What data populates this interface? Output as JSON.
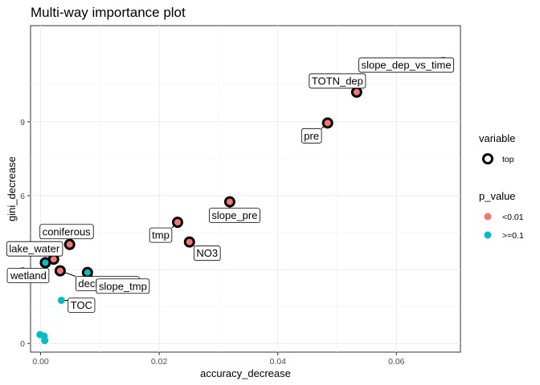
{
  "chart_data": {
    "type": "scatter",
    "title": "Multi-way importance plot",
    "xlabel": "accuracy_decrease",
    "ylabel": "gini_decrease",
    "xlim": [
      -0.0017,
      0.0708
    ],
    "ylim": [
      -0.35,
      12.9
    ],
    "x_ticks": [
      0.0,
      0.02,
      0.04,
      0.06
    ],
    "x_tick_labels": [
      "0.00",
      "0.02",
      "0.04",
      "0.06"
    ],
    "y_ticks": [
      0,
      3,
      6,
      9
    ],
    "y_tick_labels": [
      "0",
      "3",
      "6",
      "9"
    ],
    "grid": true,
    "legend": {
      "placement": "right",
      "variable": {
        "title": "variable",
        "entries": [
          "top"
        ]
      },
      "p_value": {
        "title": "p_value",
        "entries": [
          {
            "label": "<0.01",
            "color": "#F8766D"
          },
          {
            "label": ">=0.1",
            "color": "#00BFC4"
          }
        ]
      }
    },
    "colors": {
      "<0.01": "#F8766D",
      ">=0.1": "#00BFC4"
    },
    "points": [
      {
        "label": "slope_dep_vs_time",
        "x": 0.0679,
        "y": 11.4,
        "p_value": "<0.01",
        "top": true
      },
      {
        "label": "TOTN_dep",
        "x": 0.0533,
        "y": 10.2,
        "p_value": "<0.01",
        "top": true
      },
      {
        "label": "pre",
        "x": 0.0484,
        "y": 8.95,
        "p_value": "<0.01",
        "top": true
      },
      {
        "label": "slope_pre",
        "x": 0.0319,
        "y": 5.75,
        "p_value": "<0.01",
        "top": true
      },
      {
        "label": "tmp",
        "x": 0.0231,
        "y": 4.92,
        "p_value": "<0.01",
        "top": true
      },
      {
        "label": "NO3",
        "x": 0.0251,
        "y": 4.12,
        "p_value": "<0.01",
        "top": true
      },
      {
        "label": "coniferous",
        "x": 0.0049,
        "y": 4.02,
        "p_value": "<0.01",
        "top": true
      },
      {
        "label": "lake_water",
        "x": 0.0022,
        "y": 3.42,
        "p_value": "<0.01",
        "top": true
      },
      {
        "label": "wetland",
        "x": 0.0008,
        "y": 3.28,
        "p_value": ">=0.1",
        "top": true
      },
      {
        "label": "decid_mixed",
        "x": 0.0033,
        "y": 2.95,
        "p_value": "<0.01",
        "top": true
      },
      {
        "label": "slope_tmp",
        "x": 0.0079,
        "y": 2.88,
        "p_value": ">=0.1",
        "top": true
      },
      {
        "label": "TOC",
        "x": 0.0035,
        "y": 1.75,
        "p_value": ">=0.1",
        "top": false
      },
      {
        "label": "",
        "x": -0.0001,
        "y": 0.36,
        "p_value": ">=0.1",
        "top": false
      },
      {
        "label": "",
        "x": 0.0006,
        "y": 0.3,
        "p_value": ">=0.1",
        "top": false
      },
      {
        "label": "",
        "x": 0.0007,
        "y": 0.12,
        "p_value": ">=0.1",
        "top": false
      }
    ]
  }
}
